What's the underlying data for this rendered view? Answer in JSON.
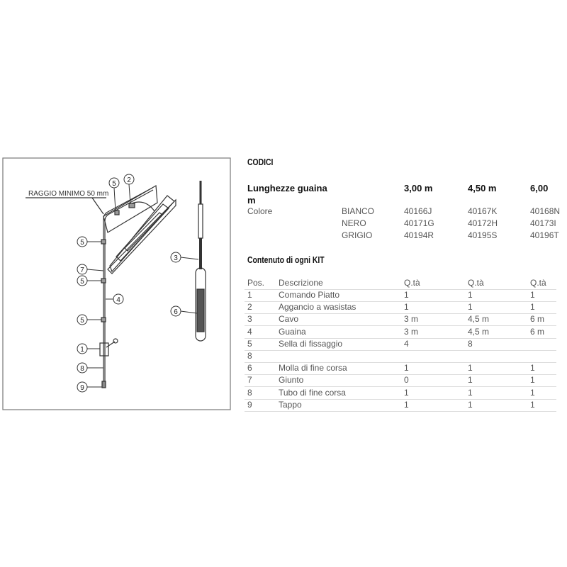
{
  "diagram": {
    "label": "RAGGIO MINIMO 50 mm",
    "callouts": [
      "5",
      "2",
      "5",
      "7",
      "5",
      "4",
      "5",
      "1",
      "8",
      "9",
      "3",
      "6"
    ]
  },
  "codici": {
    "title": "CODICI",
    "length_label": "Lunghezze guaina",
    "length_label_cont": "m",
    "lengths": [
      "3,00 m",
      "4,50 m",
      "6,00"
    ],
    "color_label": "Colore",
    "rows": [
      {
        "color": "BIANCO",
        "codes": [
          "40166J",
          "40167K",
          "40168N"
        ]
      },
      {
        "color": "NERO",
        "codes": [
          "40171G",
          "40172H",
          "40173I"
        ]
      },
      {
        "color": "GRIGIO",
        "codes": [
          "40194R",
          "40195S",
          "40196T"
        ]
      }
    ]
  },
  "kit": {
    "title": "Contenuto di ogni KIT",
    "headers": [
      "Pos.",
      "Descrizione",
      "Q.tà",
      "Q.tà",
      "Q.tà"
    ],
    "rows": [
      [
        "1",
        "Comando Piatto",
        "1",
        "1",
        "1"
      ],
      [
        "2",
        "Aggancio a wasistas",
        "1",
        "1",
        "1"
      ],
      [
        "3",
        "Cavo",
        "3 m",
        "4,5 m",
        "6 m"
      ],
      [
        "4",
        "Guaina",
        "3 m",
        "4,5 m",
        "6 m"
      ],
      [
        "5",
        "Sella di fissaggio",
        "4",
        "8",
        ""
      ],
      [
        "8",
        "",
        "",
        "",
        ""
      ],
      [
        "6",
        "Molla di fine corsa",
        "1",
        "1",
        "1"
      ],
      [
        "7",
        "Giunto",
        "0",
        "1",
        "1"
      ],
      [
        "8",
        "Tubo di fine corsa",
        "1",
        "1",
        "1"
      ],
      [
        "9",
        "Tappo",
        "1",
        "1",
        "1"
      ]
    ]
  }
}
